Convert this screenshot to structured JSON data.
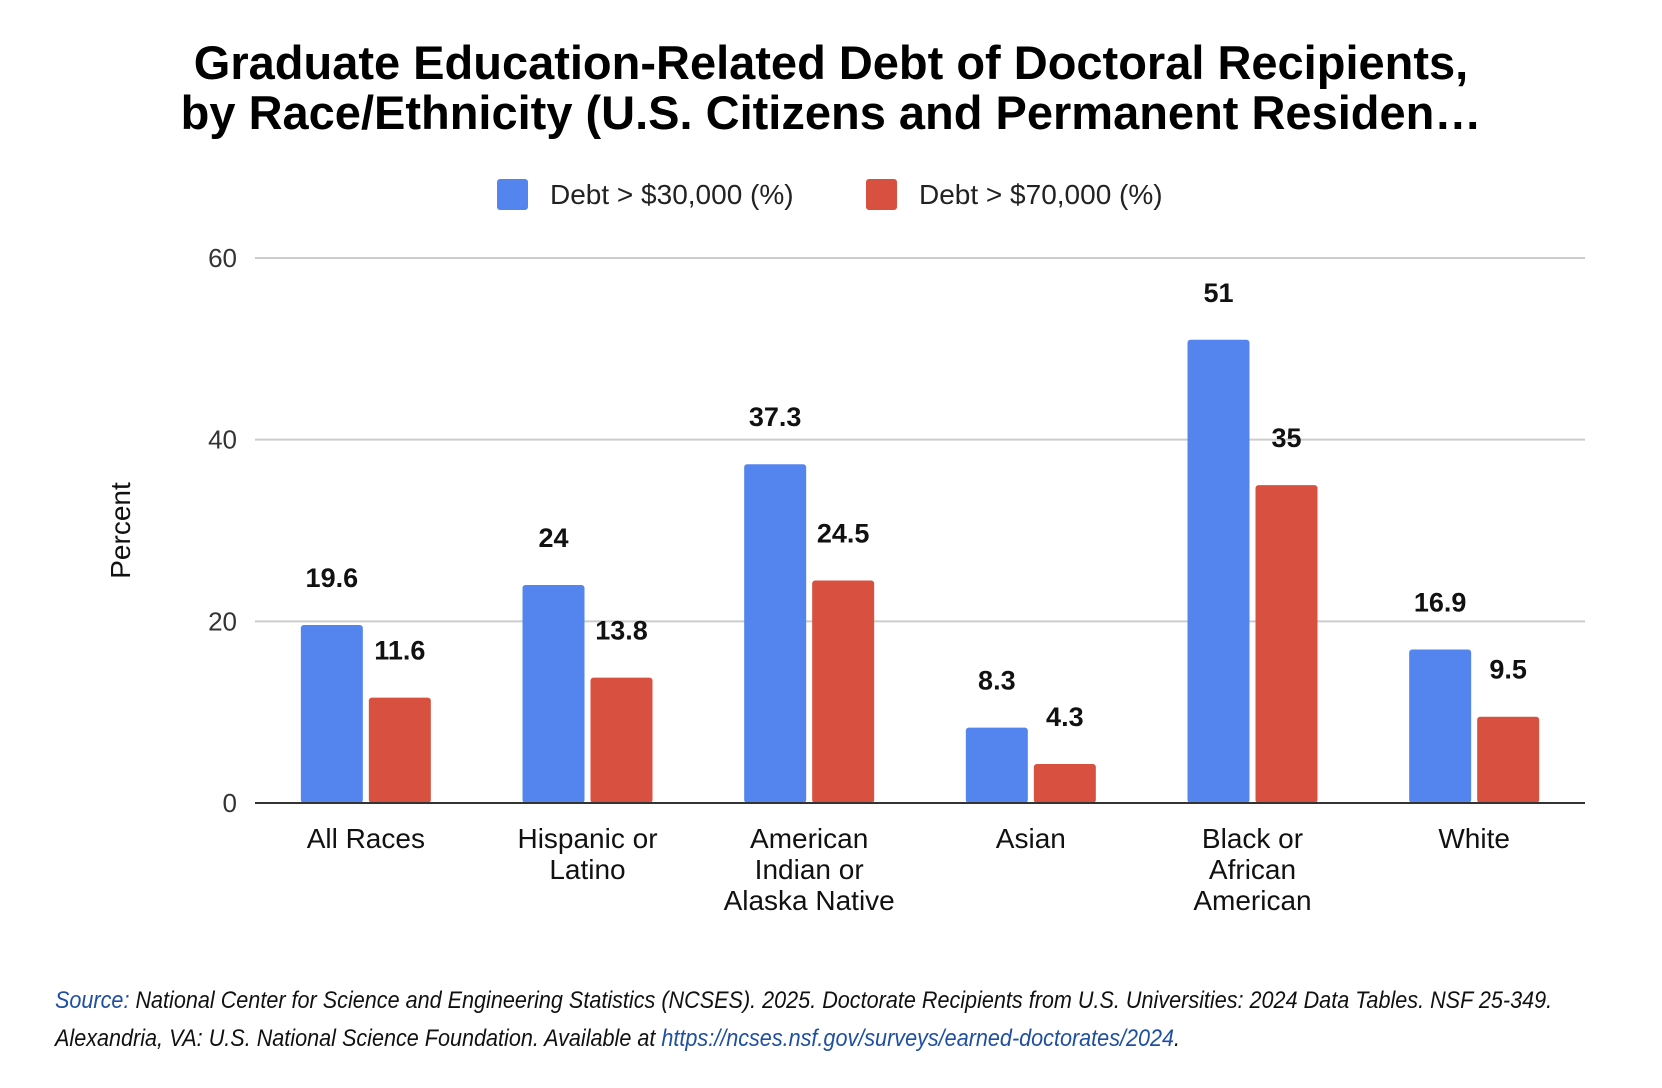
{
  "chart_data": {
    "type": "bar",
    "title_lines": [
      "Graduate Education-Related Debt of Doctoral Recipients,",
      "by Race/Ethnicity  (U.S. Citizens and Permanent Residen…"
    ],
    "ylabel": "Percent",
    "xlabel": "",
    "ylim": [
      0,
      60
    ],
    "yticks": [
      0,
      20,
      40,
      60
    ],
    "grid": true,
    "legend_position": "top",
    "categories": [
      [
        "All Races"
      ],
      [
        "Hispanic or",
        "Latino"
      ],
      [
        "American",
        "Indian or",
        "Alaska Native"
      ],
      [
        "Asian"
      ],
      [
        "Black or",
        "African",
        "American"
      ],
      [
        "White"
      ]
    ],
    "series": [
      {
        "name": "Debt > $30,000 (%)",
        "color": "#5485ee",
        "values": [
          19.6,
          24,
          37.3,
          8.3,
          51,
          16.9
        ]
      },
      {
        "name": "Debt > $70,000 (%)",
        "color": "#d85040",
        "values": [
          11.6,
          13.8,
          24.5,
          4.3,
          35,
          9.5
        ]
      }
    ]
  },
  "source": {
    "label": "Source:",
    "text": " National Center for Science and Engineering Statistics (NCSES). 2025. Doctorate Recipients from U.S. Universities: 2024 Data Tables. NSF 25-349. Alexandria, VA: U.S. National Science Foundation. Available at ",
    "link": "https://ncses.nsf.gov/surveys/earned-doctorates/2024",
    "end": "."
  },
  "colors": {
    "label_color": "#1f4fa0",
    "grid": "#cccccc",
    "axis": "#333333"
  }
}
